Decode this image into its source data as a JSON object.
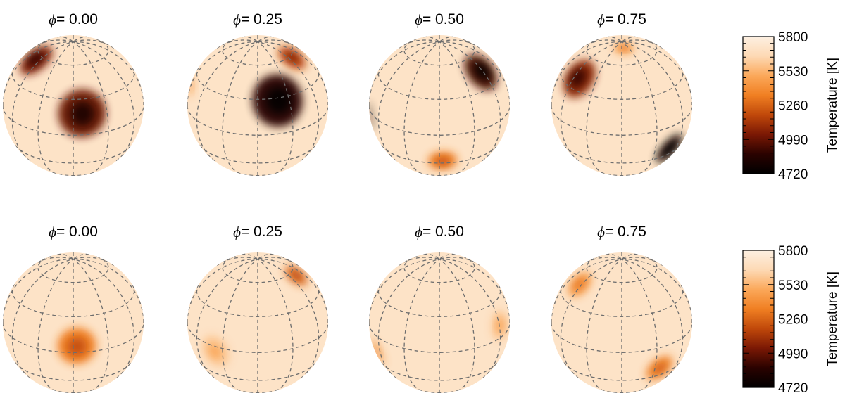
{
  "figure": {
    "rows": [
      {
        "panels": [
          {
            "phase": "0.00",
            "spots": [
              {
                "lon": -72,
                "lat": 55,
                "r": 16,
                "dT": 0.75
              },
              {
                "lon": 8,
                "lat": 18,
                "r": 20,
                "dT": 0.78
              }
            ]
          },
          {
            "phase": "0.25",
            "spots": [
              {
                "lon": 20,
                "lat": 28,
                "r": 22,
                "dT": 0.92
              },
              {
                "lon": 70,
                "lat": 58,
                "r": 13,
                "dT": 0.6
              },
              {
                "lon": -88,
                "lat": 18,
                "r": 9,
                "dT": 0.3
              }
            ]
          },
          {
            "phase": "0.50",
            "spots": [
              {
                "lon": -86,
                "lat": -8,
                "r": 14,
                "dT": 0.95
              },
              {
                "lon": 60,
                "lat": 45,
                "r": 17,
                "dT": 0.85
              },
              {
                "lon": 3,
                "lat": -28,
                "r": 12,
                "dT": 0.45
              }
            ]
          },
          {
            "phase": "0.75",
            "spots": [
              {
                "lon": -55,
                "lat": 40,
                "r": 17,
                "dT": 0.72
              },
              {
                "lon": 50,
                "lat": -25,
                "r": 15,
                "dT": 1.0
              },
              {
                "lon": 10,
                "lat": 80,
                "r": 8,
                "dT": 0.35
              }
            ]
          }
        ],
        "colorbar": {
          "title": "Temperature [K]",
          "ticks": [
            "5800",
            "5530",
            "5260",
            "4990",
            "4720"
          ]
        }
      },
      {
        "panels": [
          {
            "phase": "0.00",
            "spots": [
              {
                "lon": 3,
                "lat": 5,
                "r": 16,
                "dT": 0.45
              }
            ]
          },
          {
            "phase": "0.25",
            "spots": [
              {
                "lon": -38,
                "lat": -5,
                "r": 14,
                "dT": 0.2
              },
              {
                "lon": 75,
                "lat": 55,
                "r": 11,
                "dT": 0.5
              }
            ]
          },
          {
            "phase": "0.50",
            "spots": [
              {
                "lon": -70,
                "lat": -18,
                "r": 12,
                "dT": 0.35
              },
              {
                "lon": 62,
                "lat": 10,
                "r": 12,
                "dT": 0.22
              }
            ]
          },
          {
            "phase": "0.75",
            "spots": [
              {
                "lon": -65,
                "lat": 48,
                "r": 12,
                "dT": 0.35
              },
              {
                "lon": 36,
                "lat": -22,
                "r": 13,
                "dT": 0.42
              }
            ]
          }
        ],
        "colorbar": {
          "title": "Temperature [K]",
          "ticks": [
            "5800",
            "5530",
            "5260",
            "4990",
            "4720"
          ]
        }
      }
    ],
    "phase_symbol": "ϕ",
    "phase_prefix": "= ",
    "inclination_deg": 25,
    "graticule_lat_step_deg": 30,
    "graticule_lon_step_deg": 30,
    "colors": {
      "photosphere": "#fde3c7",
      "colormap": [
        "#fdf0e2",
        "#fdd9b4",
        "#fba85a",
        "#f07f22",
        "#c0480a",
        "#7a1804",
        "#2a0200",
        "#000000"
      ],
      "grid": "#6e6e6e"
    }
  }
}
